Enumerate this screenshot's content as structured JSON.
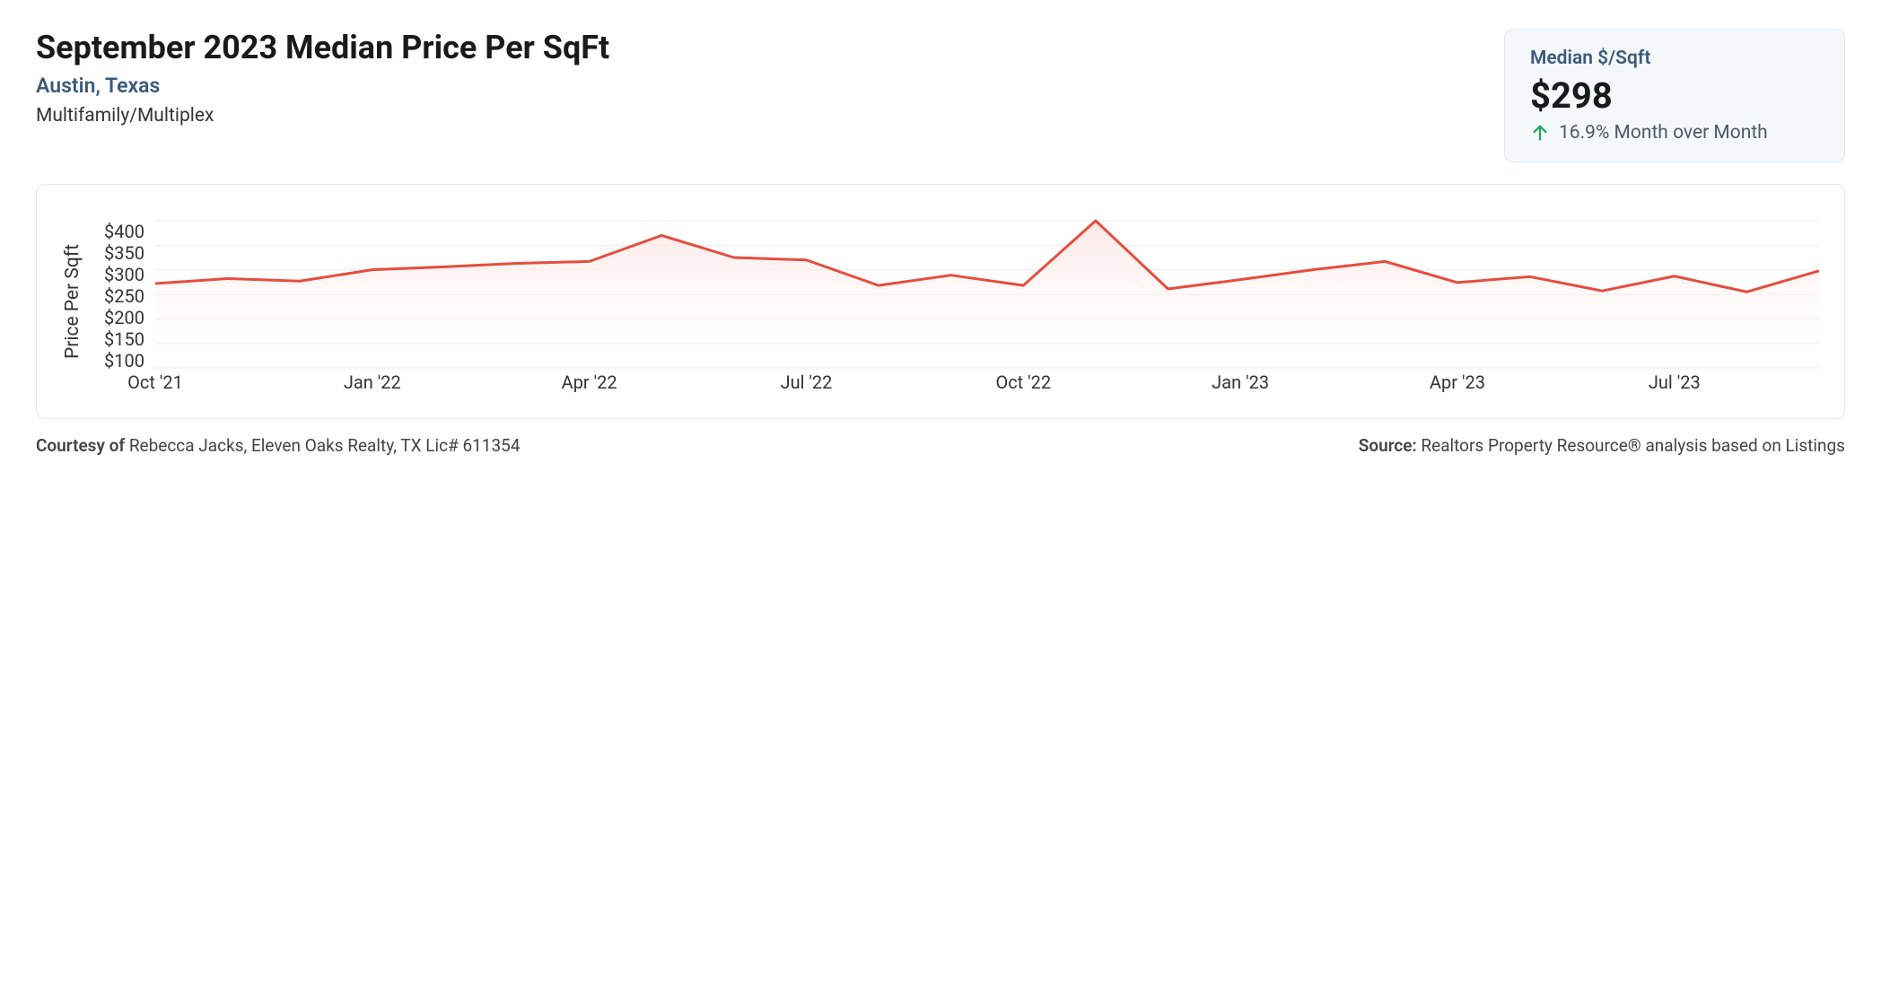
{
  "header": {
    "title": "September 2023 Median Price Per SqFt",
    "location": "Austin, Texas",
    "property_type": "Multifamily/Multiplex"
  },
  "stat_card": {
    "label": "Median $/Sqft",
    "value": "$298",
    "change_text": "16.9% Month over Month",
    "arrow_color": "#1aab5a"
  },
  "chart": {
    "type": "area",
    "y_axis_label": "Price Per Sqft",
    "ylim": [
      100,
      400
    ],
    "ytick_step": 50,
    "y_tick_labels": [
      "$400",
      "$350",
      "$300",
      "$250",
      "$200",
      "$150",
      "$100"
    ],
    "x_tick_indices": [
      0,
      3,
      6,
      9,
      12,
      15,
      18,
      21
    ],
    "x_tick_labels": [
      "Oct '21",
      "Jan '22",
      "Apr '22",
      "Jul '22",
      "Oct '22",
      "Jan '23",
      "Apr '23",
      "Jul '23"
    ],
    "num_points": 24,
    "values": [
      272,
      282,
      277,
      300,
      306,
      313,
      317,
      370,
      325,
      320,
      268,
      289,
      268,
      400,
      261,
      280,
      300,
      317,
      274,
      286,
      257,
      287,
      255,
      298
    ],
    "line_color": "#e64d3d",
    "line_width": 3,
    "fill_top_color": "#fce7e4",
    "fill_bottom_color": "#ffffff",
    "grid_color": "#ececec",
    "background_color": "#ffffff",
    "border_color": "#e2e8ee",
    "tick_fontsize": 20,
    "axis_label_fontsize": 21
  },
  "footer": {
    "courtesy_label": "Courtesy of",
    "courtesy_text": " Rebecca Jacks, Eleven Oaks Realty, TX Lic# 611354",
    "source_label": "Source:",
    "source_text": " Realtors Property Resource® analysis based on Listings"
  }
}
